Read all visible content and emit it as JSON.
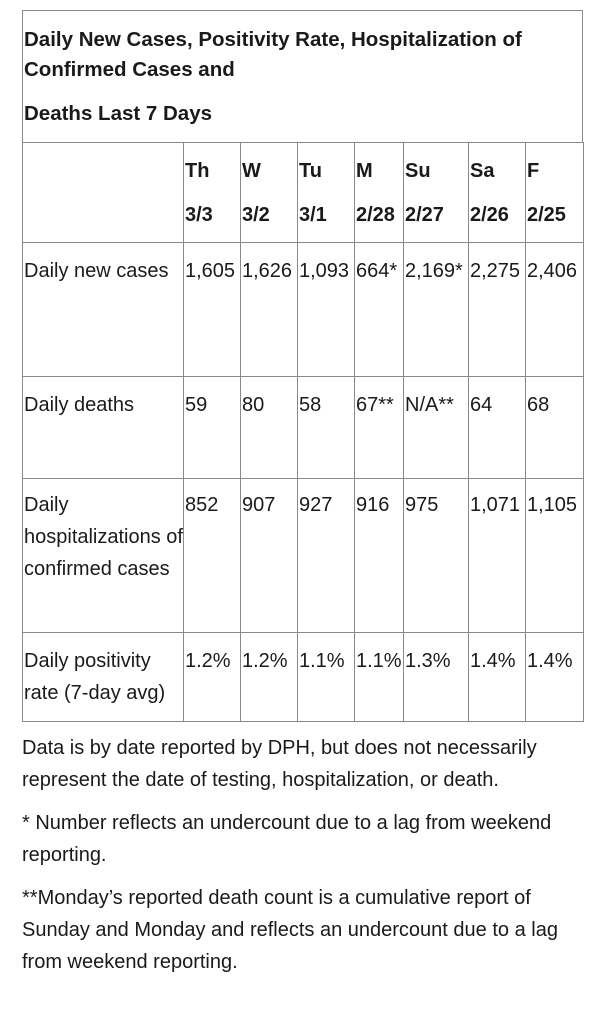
{
  "title": {
    "line1": "Daily New Cases, Positivity Rate, Hospitalization of",
    "line2": "Confirmed Cases and",
    "line3": "Deaths Last 7 Days"
  },
  "columns": [
    {
      "day": "Th",
      "date": "3/3"
    },
    {
      "day": "W",
      "date": "3/2"
    },
    {
      "day": "Tu",
      "date": "3/1"
    },
    {
      "day": "M",
      "date": "2/28"
    },
    {
      "day": "Su",
      "date": "2/27"
    },
    {
      "day": "Sa",
      "date": "2/26"
    },
    {
      "day": "F",
      "date": "2/25"
    }
  ],
  "rows": [
    {
      "label": "Daily new cases",
      "values": [
        "1,605",
        "1,626",
        "1,093",
        "664*",
        "2,169*",
        "2,275",
        "2,406"
      ]
    },
    {
      "label": "Daily deaths",
      "values": [
        "59",
        "80",
        "58",
        "67**",
        "N/A**",
        "64",
        "68"
      ]
    },
    {
      "label": "Daily hospitalizations of confirmed cases",
      "values": [
        "852",
        "907",
        "927",
        "916",
        "975",
        "1,071",
        "1,105"
      ]
    },
    {
      "label": "Daily positivity rate (7-day avg)",
      "values": [
        "1.2%",
        "1.2%",
        "1.1%",
        "1.1%",
        "1.3%",
        "1.4%",
        "1.4%"
      ]
    }
  ],
  "notes": [
    "Data is by date reported by DPH, but does not necessarily represent the date of testing, hospitalization, or death.",
    "* Number reflects an undercount due to a lag from weekend reporting.",
    "**Monday’s reported death count is a cumulative report of Sunday and Monday and reflects an undercount due to a lag from weekend reporting."
  ]
}
